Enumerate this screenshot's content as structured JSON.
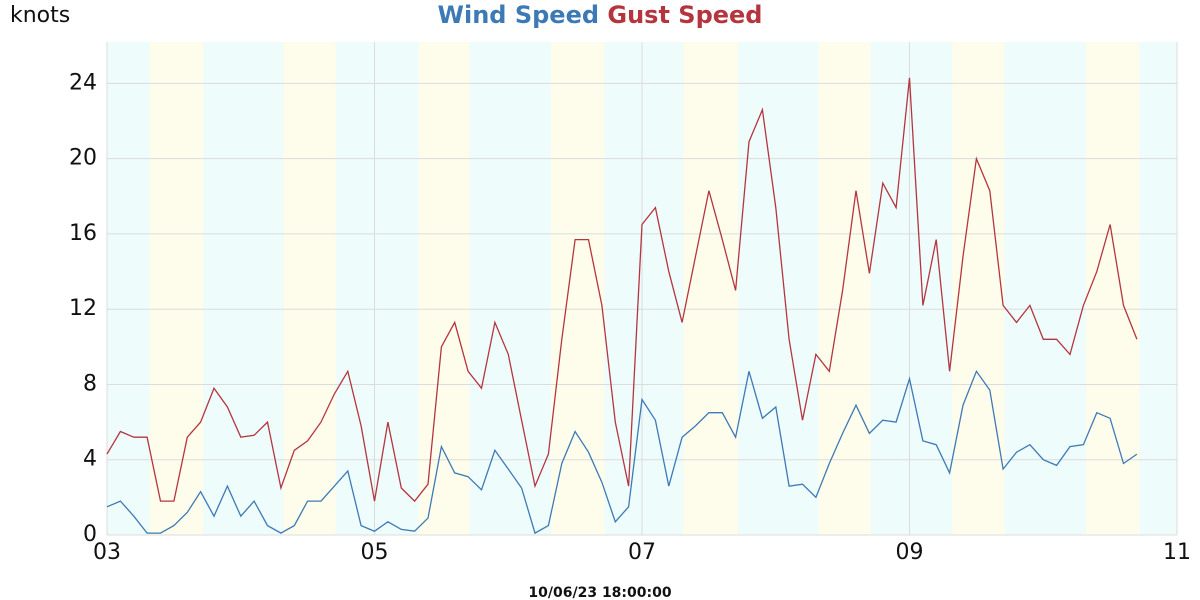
{
  "chart_data": {
    "type": "line",
    "y_label": "knots",
    "footer": "10/06/23 18:00:00",
    "xlim": [
      3,
      11
    ],
    "xticks": [
      {
        "value": 3,
        "label": "03"
      },
      {
        "value": 5,
        "label": "05"
      },
      {
        "value": 7,
        "label": "07"
      },
      {
        "value": 9,
        "label": "09"
      },
      {
        "value": 11,
        "label": "11"
      }
    ],
    "ylim": [
      0,
      26.2
    ],
    "yticks": [
      0,
      4,
      8,
      12,
      16,
      20,
      24
    ],
    "grid": true,
    "background_color": "#eefcfc",
    "bands": [
      {
        "x": [
          3.32,
          3.72
        ],
        "color": "#fefdec"
      },
      {
        "x": [
          4.32,
          4.71
        ],
        "color": "#fefdec"
      },
      {
        "x": [
          5.33,
          5.71
        ],
        "color": "#fefdec"
      },
      {
        "x": [
          6.32,
          6.72
        ],
        "color": "#fefdec"
      },
      {
        "x": [
          7.31,
          7.72
        ],
        "color": "#fefdec"
      },
      {
        "x": [
          8.32,
          8.71
        ],
        "color": "#fefdec"
      },
      {
        "x": [
          9.32,
          9.71
        ],
        "color": "#fefdec"
      },
      {
        "x": [
          10.32,
          10.72
        ],
        "color": "#fefdec"
      }
    ],
    "x": [
      3.0,
      3.1,
      3.2,
      3.3,
      3.4,
      3.5,
      3.6,
      3.7,
      3.8,
      3.9,
      4.0,
      4.1,
      4.2,
      4.3,
      4.4,
      4.5,
      4.6,
      4.7,
      4.8,
      4.9,
      5.0,
      5.1,
      5.2,
      5.3,
      5.4,
      5.5,
      5.6,
      5.7,
      5.8,
      5.9,
      6.0,
      6.1,
      6.2,
      6.3,
      6.4,
      6.5,
      6.6,
      6.7,
      6.8,
      6.9,
      7.0,
      7.1,
      7.2,
      7.3,
      7.4,
      7.5,
      7.6,
      7.7,
      7.8,
      7.9,
      8.0,
      8.1,
      8.2,
      8.3,
      8.4,
      8.5,
      8.6,
      8.7,
      8.8,
      8.9,
      9.0,
      9.1,
      9.2,
      9.3,
      9.4,
      9.5,
      9.6,
      9.7,
      9.8,
      9.9,
      10.0,
      10.1,
      10.2,
      10.3,
      10.4,
      10.5,
      10.6,
      10.7
    ],
    "series": [
      {
        "name": "Wind Speed",
        "color": "#3d7ab5",
        "values": [
          1.5,
          1.8,
          1.0,
          0.1,
          0.1,
          0.5,
          1.2,
          2.3,
          1.0,
          2.6,
          1.0,
          1.8,
          0.5,
          0.1,
          0.5,
          1.8,
          1.8,
          2.6,
          3.4,
          0.5,
          0.2,
          0.7,
          0.3,
          0.2,
          0.9,
          4.7,
          3.3,
          3.1,
          2.4,
          4.5,
          3.5,
          2.5,
          0.1,
          0.5,
          3.8,
          5.5,
          4.4,
          2.8,
          0.7,
          1.5,
          7.2,
          6.1,
          2.6,
          5.2,
          5.8,
          6.5,
          6.5,
          5.2,
          8.7,
          6.2,
          6.8,
          2.6,
          2.7,
          2.0,
          3.8,
          5.4,
          6.9,
          5.4,
          6.1,
          6.0,
          8.3,
          5.0,
          4.8,
          3.3,
          6.9,
          8.7,
          7.7,
          3.5,
          4.4,
          4.8,
          4.0,
          3.7,
          4.7,
          4.8,
          6.5,
          6.2,
          3.8,
          4.3
        ]
      },
      {
        "name": "Gust Speed",
        "color": "#b5353f",
        "values": [
          4.3,
          5.5,
          5.2,
          5.2,
          1.8,
          1.8,
          5.2,
          6.0,
          7.8,
          6.8,
          5.2,
          5.3,
          6.0,
          2.5,
          4.5,
          5.0,
          6.0,
          7.5,
          8.7,
          5.8,
          1.8,
          6.0,
          2.5,
          1.8,
          2.7,
          10.0,
          11.3,
          8.7,
          7.8,
          11.3,
          9.6,
          6.1,
          2.6,
          4.3,
          10.4,
          15.7,
          15.7,
          12.2,
          6.0,
          2.6,
          16.5,
          17.4,
          14.0,
          11.3,
          14.8,
          18.3,
          15.7,
          13.0,
          20.9,
          22.6,
          17.4,
          10.4,
          6.1,
          9.6,
          8.7,
          13.0,
          18.3,
          13.9,
          18.7,
          17.4,
          24.3,
          12.2,
          15.7,
          8.7,
          14.8,
          20.0,
          18.3,
          12.2,
          11.3,
          12.2,
          10.4,
          10.4,
          9.6,
          12.2,
          14.0,
          16.5,
          12.2,
          10.4
        ]
      }
    ]
  }
}
